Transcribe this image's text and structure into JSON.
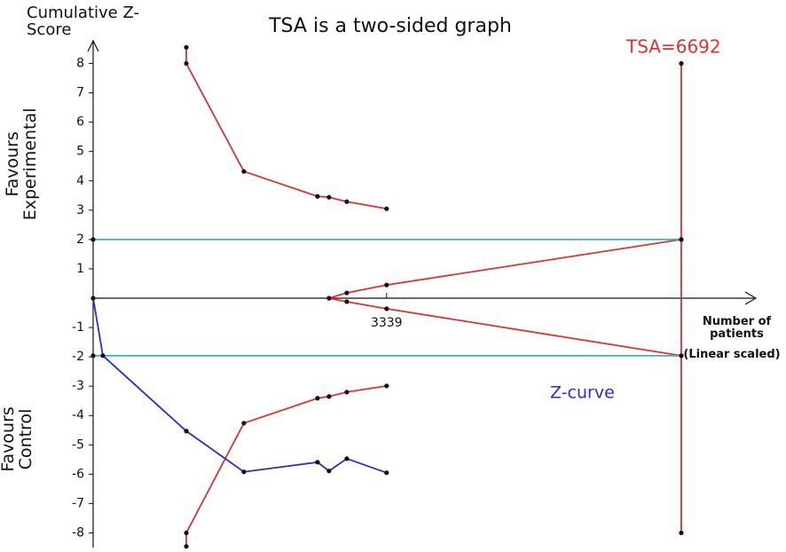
{
  "chart_data": {
    "type": "line",
    "title": "TSA is a two-sided graph",
    "y_label": "Cumulative Z-Score",
    "x_label": "Number of patients",
    "x_label_note": "(Linear scaled)",
    "favours_experimental_label": "Favours Experimental",
    "favours_control_label": "Favours Control",
    "tsa_label": "TSA=6692",
    "xlim": [
      0,
      7500
    ],
    "ylim": [
      -8.5,
      8.5
    ],
    "xticks": [
      3339
    ],
    "yticks": [
      -8,
      -7,
      -6,
      -5,
      -4,
      -3,
      -2,
      -1,
      1,
      2,
      3,
      4,
      5,
      6,
      7,
      8
    ],
    "series": [
      {
        "color": "#e03030",
        "x": [
          1060,
          1060,
          1715,
          2553,
          2684,
          2886,
          3339
        ],
        "values": [
          8.55,
          8,
          4.32,
          3.47,
          3.44,
          3.29,
          3.05
        ]
      },
      {
        "color": "#e03030",
        "x": [
          1060,
          1060,
          1715,
          2553,
          2684,
          2886,
          3339
        ],
        "values": [
          -8.46,
          -8,
          -4.26,
          -3.41,
          -3.35,
          -3.2,
          -2.99
        ]
      },
      {
        "color": "#e03030",
        "x": [
          2684,
          2886,
          3339,
          6692
        ],
        "values": [
          0,
          0.18,
          0.45,
          2
        ]
      },
      {
        "color": "#e03030",
        "x": [
          2684,
          2886,
          3339,
          6692
        ],
        "values": [
          0,
          -0.12,
          -0.36,
          -1.96
        ]
      },
      {
        "color": "#e03030",
        "x": [
          6692,
          6692
        ],
        "values": [
          8,
          -8
        ]
      },
      {
        "color": "#40b4b4",
        "x": [
          0,
          6692
        ],
        "values": [
          2,
          2
        ]
      },
      {
        "color": "#40b4b4",
        "x": [
          0,
          6692
        ],
        "values": [
          -1.96,
          -1.96
        ]
      },
      {
        "name": "Z-curve",
        "color": "#2b2bd0",
        "x": [
          0,
          111,
          1060,
          1715,
          2553,
          2684,
          2886,
          3339
        ],
        "values": [
          0,
          -1.96,
          -4.53,
          -5.92,
          -5.59,
          -5.89,
          -5.47,
          -5.95
        ]
      }
    ]
  }
}
